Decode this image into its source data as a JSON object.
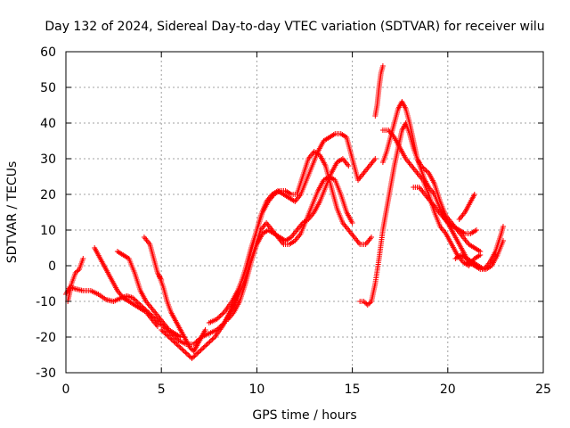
{
  "chart_data": {
    "type": "scatter",
    "title": "Day 132 of 2024, Sidereal Day-to-day VTEC variation (SDTVAR) for receiver wilu",
    "xlabel": "GPS time / hours",
    "ylabel": "SDTVAR / TECUs",
    "xlim": [
      0,
      25
    ],
    "ylim": [
      -30,
      60
    ],
    "xticks": [
      0,
      5,
      10,
      15,
      20,
      25
    ],
    "yticks": [
      -30,
      -20,
      -10,
      0,
      10,
      20,
      30,
      40,
      50,
      60
    ],
    "grid": true,
    "marker": "plus",
    "color": "#ff0000",
    "series": [
      {
        "name": "trace-1",
        "points": [
          [
            0.0,
            -8
          ],
          [
            0.2,
            -6
          ],
          [
            0.5,
            -6.5
          ],
          [
            0.9,
            -7
          ],
          [
            1.3,
            -7
          ],
          [
            1.7,
            -8
          ],
          [
            2.1,
            -9.5
          ],
          [
            2.5,
            -10
          ],
          [
            2.9,
            -9
          ],
          [
            3.2,
            -8.5
          ],
          [
            3.5,
            -9
          ],
          [
            3.9,
            -11
          ],
          [
            4.3,
            -13
          ],
          [
            4.7,
            -15
          ],
          [
            5.1,
            -17
          ],
          [
            5.5,
            -19
          ],
          [
            5.9,
            -21
          ],
          [
            6.3,
            -22
          ],
          [
            6.7,
            -22
          ],
          [
            7.1,
            -20
          ],
          [
            7.5,
            -19
          ],
          [
            7.9,
            -18
          ],
          [
            8.3,
            -16
          ],
          [
            8.7,
            -12
          ],
          [
            9.1,
            -6
          ],
          [
            9.4,
            -1
          ],
          [
            9.7,
            5
          ],
          [
            10.0,
            10
          ],
          [
            10.3,
            15
          ],
          [
            10.6,
            18
          ],
          [
            10.9,
            20
          ],
          [
            11.2,
            21
          ],
          [
            11.5,
            21
          ],
          [
            11.8,
            20
          ],
          [
            12.1,
            20
          ],
          [
            12.4,
            25
          ],
          [
            12.7,
            30
          ],
          [
            13.0,
            32
          ],
          [
            13.3,
            31
          ],
          [
            13.6,
            28
          ],
          [
            13.9,
            22
          ],
          [
            14.2,
            16
          ],
          [
            14.5,
            12
          ],
          [
            14.8,
            10
          ],
          [
            15.1,
            8
          ],
          [
            15.4,
            6
          ],
          [
            15.7,
            6
          ],
          [
            16.0,
            8
          ]
        ]
      },
      {
        "name": "trace-2",
        "points": [
          [
            0.1,
            -10
          ],
          [
            0.3,
            -5
          ],
          [
            0.5,
            -2
          ],
          [
            0.7,
            -1
          ],
          [
            0.9,
            2
          ]
        ]
      },
      {
        "name": "trace-3",
        "points": [
          [
            1.5,
            5
          ],
          [
            1.8,
            2
          ],
          [
            2.1,
            -1
          ],
          [
            2.4,
            -4
          ],
          [
            2.7,
            -7
          ],
          [
            3.0,
            -9
          ],
          [
            3.3,
            -10
          ],
          [
            3.6,
            -11
          ],
          [
            3.9,
            -12
          ],
          [
            4.2,
            -13
          ],
          [
            4.5,
            -15
          ],
          [
            4.8,
            -17
          ]
        ]
      },
      {
        "name": "trace-4",
        "points": [
          [
            2.7,
            4
          ],
          [
            3.0,
            3
          ],
          [
            3.3,
            2
          ],
          [
            3.6,
            -2
          ],
          [
            3.9,
            -7
          ],
          [
            4.2,
            -10
          ],
          [
            4.5,
            -12
          ],
          [
            4.8,
            -14
          ],
          [
            5.1,
            -16
          ],
          [
            5.4,
            -18
          ],
          [
            5.7,
            -19
          ],
          [
            6.0,
            -20
          ]
        ]
      },
      {
        "name": "trace-5",
        "points": [
          [
            4.1,
            8
          ],
          [
            4.4,
            6
          ],
          [
            4.6,
            2
          ],
          [
            4.8,
            -2
          ],
          [
            5.0,
            -4
          ]
        ]
      },
      {
        "name": "trace-6",
        "points": [
          [
            4.9,
            -3
          ],
          [
            5.1,
            -6
          ],
          [
            5.3,
            -10
          ],
          [
            5.5,
            -13
          ],
          [
            5.7,
            -15
          ],
          [
            5.9,
            -17
          ],
          [
            6.1,
            -19
          ],
          [
            6.3,
            -21
          ],
          [
            6.5,
            -23
          ],
          [
            6.7,
            -24
          ],
          [
            6.9,
            -22
          ],
          [
            7.1,
            -20
          ],
          [
            7.3,
            -18
          ]
        ]
      },
      {
        "name": "trace-7",
        "points": [
          [
            5.0,
            -18
          ],
          [
            5.4,
            -20
          ],
          [
            5.8,
            -22
          ],
          [
            6.2,
            -24
          ],
          [
            6.6,
            -26
          ],
          [
            7.0,
            -24
          ],
          [
            7.4,
            -22
          ],
          [
            7.8,
            -20
          ],
          [
            8.2,
            -17
          ],
          [
            8.6,
            -13
          ],
          [
            9.0,
            -9
          ],
          [
            9.3,
            -5
          ],
          [
            9.6,
            0
          ],
          [
            9.9,
            5
          ],
          [
            10.2,
            10
          ],
          [
            10.5,
            12
          ],
          [
            10.8,
            10
          ],
          [
            11.1,
            8
          ],
          [
            11.4,
            6
          ],
          [
            11.7,
            6
          ],
          [
            12.0,
            7
          ],
          [
            12.3,
            9
          ],
          [
            12.6,
            13
          ],
          [
            12.9,
            17
          ],
          [
            13.2,
            21
          ],
          [
            13.5,
            24
          ],
          [
            13.8,
            25
          ],
          [
            14.1,
            24
          ],
          [
            14.4,
            20
          ],
          [
            14.7,
            15
          ],
          [
            15.0,
            12
          ]
        ]
      },
      {
        "name": "trace-8",
        "points": [
          [
            7.5,
            -16
          ],
          [
            7.9,
            -15
          ],
          [
            8.3,
            -13
          ],
          [
            8.7,
            -10
          ],
          [
            9.0,
            -7
          ],
          [
            9.3,
            -3
          ],
          [
            9.6,
            2
          ],
          [
            9.9,
            8
          ],
          [
            10.2,
            14
          ],
          [
            10.5,
            18
          ],
          [
            10.8,
            20
          ],
          [
            11.1,
            21
          ],
          [
            11.4,
            20
          ],
          [
            11.7,
            19
          ],
          [
            12.0,
            18
          ],
          [
            12.3,
            20
          ],
          [
            12.6,
            24
          ],
          [
            12.9,
            28
          ],
          [
            13.2,
            32
          ],
          [
            13.5,
            35
          ],
          [
            13.8,
            36
          ],
          [
            14.1,
            37
          ],
          [
            14.4,
            37
          ],
          [
            14.7,
            36
          ],
          [
            15.0,
            30
          ],
          [
            15.3,
            24
          ],
          [
            15.6,
            26
          ],
          [
            15.9,
            28
          ],
          [
            16.2,
            30
          ]
        ]
      },
      {
        "name": "trace-9",
        "points": [
          [
            8.5,
            -15
          ],
          [
            8.8,
            -13
          ],
          [
            9.1,
            -10
          ],
          [
            9.4,
            -5
          ],
          [
            9.7,
            1
          ],
          [
            10.0,
            6
          ],
          [
            10.3,
            9
          ],
          [
            10.6,
            10
          ],
          [
            10.9,
            9
          ],
          [
            11.2,
            8
          ],
          [
            11.5,
            7
          ],
          [
            11.8,
            8
          ],
          [
            12.1,
            10
          ],
          [
            12.4,
            12
          ],
          [
            12.7,
            13
          ],
          [
            13.0,
            15
          ],
          [
            13.3,
            18
          ],
          [
            13.6,
            22
          ],
          [
            13.9,
            26
          ],
          [
            14.2,
            29
          ],
          [
            14.5,
            30
          ],
          [
            14.8,
            28
          ]
        ]
      },
      {
        "name": "trace-10",
        "points": [
          [
            15.4,
            -10
          ],
          [
            15.6,
            -10
          ],
          [
            15.8,
            -11
          ],
          [
            16.0,
            -10
          ],
          [
            16.2,
            -5
          ],
          [
            16.4,
            2
          ],
          [
            16.6,
            10
          ],
          [
            16.8,
            16
          ],
          [
            17.0,
            22
          ],
          [
            17.2,
            28
          ],
          [
            17.4,
            33
          ],
          [
            17.6,
            38
          ],
          [
            17.8,
            40
          ],
          [
            18.0,
            37
          ],
          [
            18.2,
            33
          ],
          [
            18.4,
            30
          ],
          [
            18.6,
            28
          ],
          [
            18.8,
            27
          ],
          [
            19.0,
            26
          ],
          [
            19.3,
            23
          ],
          [
            19.6,
            18
          ],
          [
            19.9,
            14
          ],
          [
            20.2,
            12
          ],
          [
            20.5,
            10
          ],
          [
            20.8,
            8
          ],
          [
            21.1,
            6
          ],
          [
            21.4,
            5
          ],
          [
            21.7,
            4
          ]
        ]
      },
      {
        "name": "trace-11",
        "points": [
          [
            16.2,
            42
          ],
          [
            16.3,
            45
          ],
          [
            16.4,
            50
          ],
          [
            16.5,
            54
          ],
          [
            16.6,
            56
          ]
        ]
      },
      {
        "name": "trace-12",
        "points": [
          [
            16.6,
            29
          ],
          [
            16.8,
            32
          ],
          [
            17.0,
            36
          ],
          [
            17.2,
            40
          ],
          [
            17.4,
            44
          ],
          [
            17.6,
            46
          ],
          [
            17.8,
            44
          ],
          [
            18.0,
            40
          ],
          [
            18.2,
            35
          ],
          [
            18.4,
            30
          ],
          [
            18.6,
            27
          ],
          [
            18.8,
            24
          ],
          [
            19.0,
            22
          ],
          [
            19.3,
            20
          ],
          [
            19.6,
            16
          ],
          [
            19.9,
            13
          ],
          [
            20.2,
            10
          ],
          [
            20.5,
            7
          ],
          [
            20.8,
            4
          ],
          [
            21.1,
            1
          ],
          [
            21.4,
            0
          ],
          [
            21.7,
            -1
          ],
          [
            22.0,
            -1
          ],
          [
            22.3,
            0
          ],
          [
            22.6,
            3
          ],
          [
            22.9,
            7
          ]
        ]
      },
      {
        "name": "trace-13",
        "points": [
          [
            16.6,
            38
          ],
          [
            16.9,
            38
          ],
          [
            17.2,
            36
          ],
          [
            17.5,
            33
          ],
          [
            17.8,
            30
          ],
          [
            18.1,
            28
          ],
          [
            18.4,
            26
          ],
          [
            18.7,
            24
          ],
          [
            19.0,
            20
          ],
          [
            19.3,
            15
          ],
          [
            19.6,
            11
          ],
          [
            19.9,
            9
          ],
          [
            20.2,
            6
          ],
          [
            20.5,
            3
          ],
          [
            20.8,
            1
          ],
          [
            21.1,
            0
          ],
          [
            21.4,
            2
          ],
          [
            21.7,
            3
          ]
        ]
      },
      {
        "name": "trace-14",
        "points": [
          [
            18.2,
            22
          ],
          [
            18.5,
            22
          ],
          [
            18.8,
            20
          ],
          [
            19.1,
            18
          ],
          [
            19.4,
            16
          ],
          [
            19.7,
            14
          ],
          [
            20.0,
            12
          ],
          [
            20.3,
            11
          ],
          [
            20.6,
            10
          ],
          [
            20.9,
            9
          ],
          [
            21.2,
            9
          ],
          [
            21.5,
            10
          ]
        ]
      },
      {
        "name": "trace-15",
        "points": [
          [
            20.6,
            13
          ],
          [
            20.9,
            15
          ],
          [
            21.2,
            18
          ],
          [
            21.4,
            20
          ]
        ]
      },
      {
        "name": "trace-16",
        "points": [
          [
            20.4,
            2
          ],
          [
            20.7,
            3
          ],
          [
            21.0,
            2
          ],
          [
            21.3,
            1
          ],
          [
            21.6,
            0
          ],
          [
            21.9,
            -1
          ],
          [
            22.2,
            1
          ],
          [
            22.5,
            4
          ],
          [
            22.8,
            9
          ],
          [
            22.9,
            11
          ]
        ]
      }
    ]
  }
}
